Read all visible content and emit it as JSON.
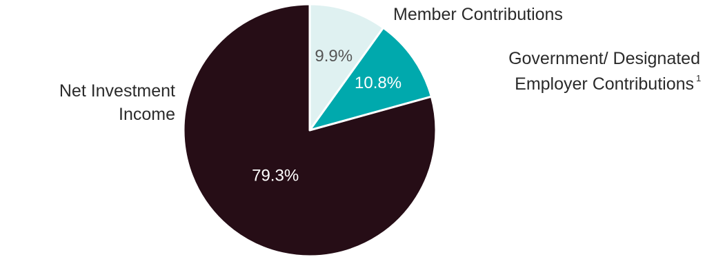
{
  "chart_data": {
    "type": "pie",
    "slices": [
      {
        "label": "Member Contributions",
        "value": 9.9,
        "display": "9.9%",
        "color": "#dff1f1",
        "text_color": "#555555"
      },
      {
        "label": "Government/ Designated Employer Contributions",
        "superscript": "1",
        "value": 10.8,
        "display": "10.8%",
        "color": "#00a9ad",
        "text_color": "#ffffff"
      },
      {
        "label": "Net Investment Income",
        "value": 79.3,
        "display": "79.3%",
        "color": "#260d16",
        "text_color": "#ffffff"
      }
    ],
    "labels": {
      "member_line1": "Member Contributions",
      "government_line1": "Government/ Designated",
      "government_line2": "Employer Contributions",
      "government_sup": "1",
      "investment_line1": "Net Investment",
      "investment_line2": "Income"
    },
    "legend": "none"
  }
}
